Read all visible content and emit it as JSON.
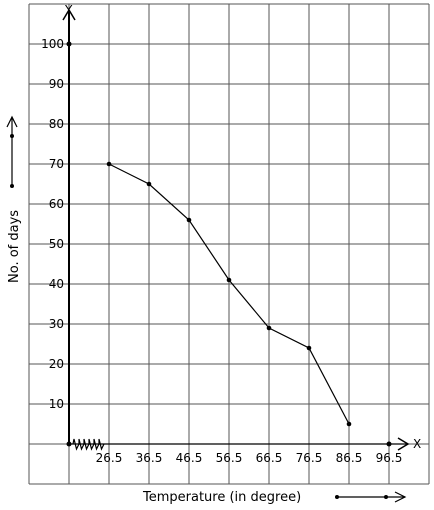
{
  "chart_data": {
    "type": "line",
    "xlabel": "Temperature (in degree)",
    "ylabel": "No. of days",
    "x_axis_letter": "X",
    "y_axis_letter": "Y",
    "x_ticks": [
      "26.5",
      "36.5",
      "46.5",
      "56.5",
      "66.5",
      "76.5",
      "86.5",
      "96.5"
    ],
    "y_ticks": [
      "10",
      "20",
      "30",
      "40",
      "50",
      "60",
      "70",
      "80",
      "90",
      "100"
    ],
    "xlim": [
      16.5,
      96.5
    ],
    "ylim": [
      0,
      100
    ],
    "x_axis_break": true,
    "grid": true,
    "series": [
      {
        "x": [
          26.5,
          36.5,
          46.5,
          56.5,
          66.5,
          76.5,
          86.5
        ],
        "values": [
          70,
          65,
          56,
          41,
          29,
          24,
          5
        ]
      }
    ],
    "line_color": "#000000"
  }
}
